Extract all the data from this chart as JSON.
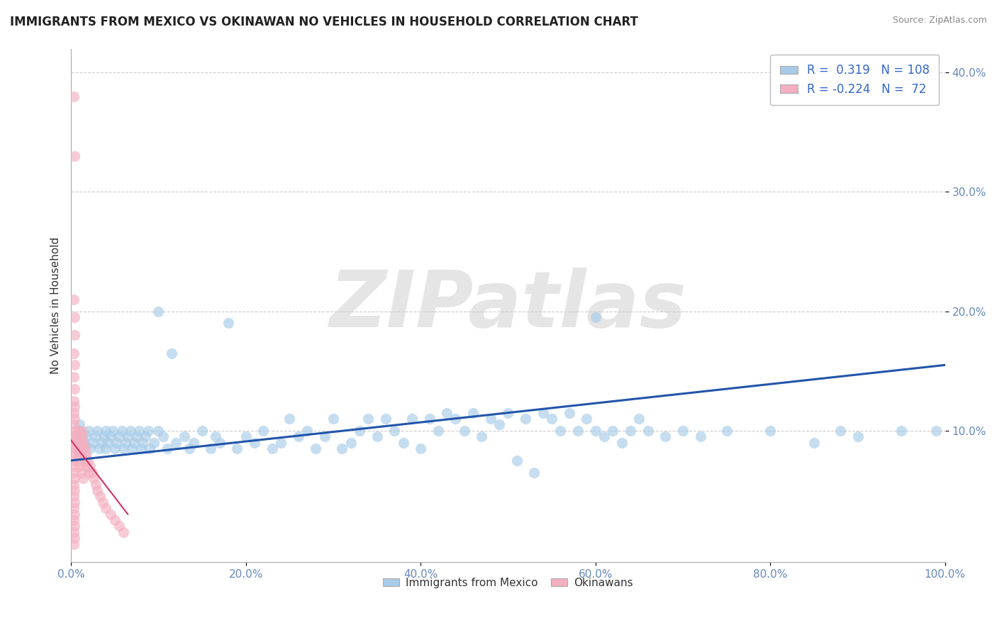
{
  "title": "IMMIGRANTS FROM MEXICO VS OKINAWAN NO VEHICLES IN HOUSEHOLD CORRELATION CHART",
  "source": "Source: ZipAtlas.com",
  "ylabel": "No Vehicles in Household",
  "xlim": [
    0,
    1.0
  ],
  "ylim": [
    -0.01,
    0.42
  ],
  "xticks": [
    0.0,
    0.2,
    0.4,
    0.6,
    0.8,
    1.0
  ],
  "xtick_labels": [
    "0.0%",
    "20.0%",
    "40.0%",
    "60.0%",
    "80.0%",
    "100.0%"
  ],
  "ytick_positions": [
    0.1,
    0.2,
    0.3,
    0.4
  ],
  "ytick_labels": [
    "10.0%",
    "20.0%",
    "30.0%",
    "40.0%"
  ],
  "blue_color": "#a8cce8",
  "pink_color": "#f4b0c0",
  "trend_blue": "#2255aa",
  "trend_pink": "#cc3366",
  "r_blue": 0.319,
  "n_blue": 108,
  "r_pink": -0.224,
  "n_pink": 72,
  "legend_labels": [
    "Immigrants from Mexico",
    "Okinawans"
  ],
  "watermark": "ZIPatlas",
  "blue_scatter": [
    [
      0.005,
      0.095
    ],
    [
      0.007,
      0.085
    ],
    [
      0.008,
      0.09
    ],
    [
      0.01,
      0.1
    ],
    [
      0.01,
      0.105
    ],
    [
      0.012,
      0.08
    ],
    [
      0.013,
      0.095
    ],
    [
      0.015,
      0.09
    ],
    [
      0.015,
      0.085
    ],
    [
      0.018,
      0.095
    ],
    [
      0.02,
      0.1
    ],
    [
      0.022,
      0.085
    ],
    [
      0.025,
      0.09
    ],
    [
      0.028,
      0.095
    ],
    [
      0.03,
      0.1
    ],
    [
      0.032,
      0.085
    ],
    [
      0.035,
      0.09
    ],
    [
      0.038,
      0.095
    ],
    [
      0.04,
      0.1
    ],
    [
      0.04,
      0.085
    ],
    [
      0.042,
      0.09
    ],
    [
      0.045,
      0.095
    ],
    [
      0.048,
      0.1
    ],
    [
      0.05,
      0.085
    ],
    [
      0.052,
      0.09
    ],
    [
      0.055,
      0.095
    ],
    [
      0.058,
      0.1
    ],
    [
      0.06,
      0.085
    ],
    [
      0.062,
      0.09
    ],
    [
      0.065,
      0.095
    ],
    [
      0.068,
      0.1
    ],
    [
      0.07,
      0.085
    ],
    [
      0.072,
      0.09
    ],
    [
      0.075,
      0.095
    ],
    [
      0.078,
      0.1
    ],
    [
      0.08,
      0.085
    ],
    [
      0.082,
      0.09
    ],
    [
      0.085,
      0.095
    ],
    [
      0.088,
      0.1
    ],
    [
      0.09,
      0.085
    ],
    [
      0.095,
      0.09
    ],
    [
      0.1,
      0.1
    ],
    [
      0.105,
      0.095
    ],
    [
      0.11,
      0.085
    ],
    [
      0.115,
      0.165
    ],
    [
      0.12,
      0.09
    ],
    [
      0.13,
      0.095
    ],
    [
      0.135,
      0.085
    ],
    [
      0.14,
      0.09
    ],
    [
      0.15,
      0.1
    ],
    [
      0.16,
      0.085
    ],
    [
      0.165,
      0.095
    ],
    [
      0.17,
      0.09
    ],
    [
      0.18,
      0.19
    ],
    [
      0.19,
      0.085
    ],
    [
      0.2,
      0.095
    ],
    [
      0.21,
      0.09
    ],
    [
      0.22,
      0.1
    ],
    [
      0.23,
      0.085
    ],
    [
      0.24,
      0.09
    ],
    [
      0.25,
      0.11
    ],
    [
      0.26,
      0.095
    ],
    [
      0.27,
      0.1
    ],
    [
      0.28,
      0.085
    ],
    [
      0.29,
      0.095
    ],
    [
      0.3,
      0.11
    ],
    [
      0.31,
      0.085
    ],
    [
      0.32,
      0.09
    ],
    [
      0.33,
      0.1
    ],
    [
      0.34,
      0.11
    ],
    [
      0.35,
      0.095
    ],
    [
      0.36,
      0.11
    ],
    [
      0.37,
      0.1
    ],
    [
      0.38,
      0.09
    ],
    [
      0.39,
      0.11
    ],
    [
      0.4,
      0.085
    ],
    [
      0.41,
      0.11
    ],
    [
      0.42,
      0.1
    ],
    [
      0.43,
      0.115
    ],
    [
      0.44,
      0.11
    ],
    [
      0.45,
      0.1
    ],
    [
      0.46,
      0.115
    ],
    [
      0.47,
      0.095
    ],
    [
      0.48,
      0.11
    ],
    [
      0.49,
      0.105
    ],
    [
      0.5,
      0.115
    ],
    [
      0.51,
      0.075
    ],
    [
      0.52,
      0.11
    ],
    [
      0.53,
      0.065
    ],
    [
      0.54,
      0.115
    ],
    [
      0.55,
      0.11
    ],
    [
      0.56,
      0.1
    ],
    [
      0.57,
      0.115
    ],
    [
      0.58,
      0.1
    ],
    [
      0.59,
      0.11
    ],
    [
      0.6,
      0.1
    ],
    [
      0.61,
      0.095
    ],
    [
      0.62,
      0.1
    ],
    [
      0.63,
      0.09
    ],
    [
      0.64,
      0.1
    ],
    [
      0.65,
      0.11
    ],
    [
      0.66,
      0.1
    ],
    [
      0.68,
      0.095
    ],
    [
      0.7,
      0.1
    ],
    [
      0.72,
      0.095
    ],
    [
      0.75,
      0.1
    ],
    [
      0.8,
      0.1
    ],
    [
      0.85,
      0.09
    ],
    [
      0.88,
      0.1
    ],
    [
      0.9,
      0.095
    ],
    [
      0.95,
      0.1
    ],
    [
      0.99,
      0.1
    ],
    [
      0.1,
      0.2
    ],
    [
      0.6,
      0.195
    ]
  ],
  "pink_scatter": [
    [
      0.003,
      0.38
    ],
    [
      0.004,
      0.33
    ],
    [
      0.003,
      0.21
    ],
    [
      0.004,
      0.195
    ],
    [
      0.004,
      0.18
    ],
    [
      0.003,
      0.165
    ],
    [
      0.004,
      0.155
    ],
    [
      0.003,
      0.145
    ],
    [
      0.004,
      0.135
    ],
    [
      0.003,
      0.125
    ],
    [
      0.004,
      0.12
    ],
    [
      0.003,
      0.115
    ],
    [
      0.004,
      0.11
    ],
    [
      0.003,
      0.105
    ],
    [
      0.004,
      0.1
    ],
    [
      0.003,
      0.095
    ],
    [
      0.004,
      0.09
    ],
    [
      0.003,
      0.085
    ],
    [
      0.004,
      0.08
    ],
    [
      0.003,
      0.075
    ],
    [
      0.004,
      0.07
    ],
    [
      0.003,
      0.065
    ],
    [
      0.004,
      0.06
    ],
    [
      0.003,
      0.055
    ],
    [
      0.004,
      0.05
    ],
    [
      0.003,
      0.045
    ],
    [
      0.004,
      0.04
    ],
    [
      0.003,
      0.035
    ],
    [
      0.004,
      0.03
    ],
    [
      0.003,
      0.025
    ],
    [
      0.004,
      0.02
    ],
    [
      0.003,
      0.015
    ],
    [
      0.004,
      0.01
    ],
    [
      0.003,
      0.005
    ],
    [
      0.006,
      0.095
    ],
    [
      0.007,
      0.085
    ],
    [
      0.007,
      0.09
    ],
    [
      0.008,
      0.1
    ],
    [
      0.008,
      0.085
    ],
    [
      0.009,
      0.09
    ],
    [
      0.01,
      0.095
    ],
    [
      0.01,
      0.08
    ],
    [
      0.011,
      0.085
    ],
    [
      0.012,
      0.09
    ],
    [
      0.012,
      0.095
    ],
    [
      0.013,
      0.1
    ],
    [
      0.014,
      0.085
    ],
    [
      0.014,
      0.09
    ],
    [
      0.015,
      0.08
    ],
    [
      0.016,
      0.075
    ],
    [
      0.016,
      0.085
    ],
    [
      0.017,
      0.08
    ],
    [
      0.018,
      0.07
    ],
    [
      0.019,
      0.075
    ],
    [
      0.02,
      0.065
    ],
    [
      0.022,
      0.07
    ],
    [
      0.024,
      0.065
    ],
    [
      0.026,
      0.06
    ],
    [
      0.028,
      0.055
    ],
    [
      0.03,
      0.05
    ],
    [
      0.033,
      0.045
    ],
    [
      0.036,
      0.04
    ],
    [
      0.04,
      0.035
    ],
    [
      0.045,
      0.03
    ],
    [
      0.05,
      0.025
    ],
    [
      0.055,
      0.02
    ],
    [
      0.06,
      0.015
    ],
    [
      0.008,
      0.08
    ],
    [
      0.009,
      0.075
    ],
    [
      0.01,
      0.07
    ],
    [
      0.012,
      0.065
    ],
    [
      0.014,
      0.06
    ]
  ],
  "blue_trend_x": [
    0.0,
    1.0
  ],
  "blue_trend_y": [
    0.075,
    0.155
  ],
  "pink_trend_x": [
    0.0,
    0.065
  ],
  "pink_trend_y": [
    0.092,
    0.03
  ]
}
